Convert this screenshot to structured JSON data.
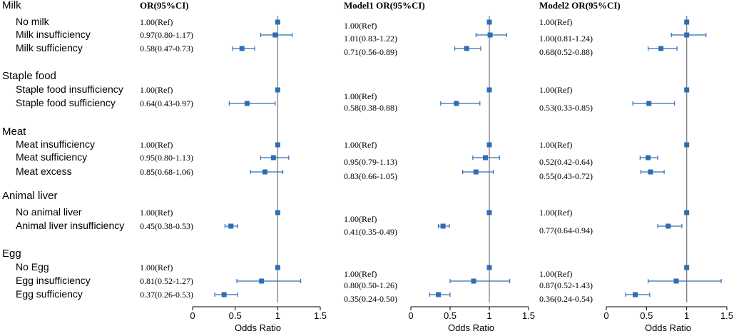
{
  "colors": {
    "marker": "#2f6db3",
    "axis": "#000000",
    "refline": "#7f7f7f",
    "text": "#000000"
  },
  "chart_data": {
    "type": "forest",
    "xlabel": "Odds Ratio",
    "xlim": [
      0,
      1.5
    ],
    "ticks": [
      0,
      0.5,
      1,
      1.5
    ],
    "tick_labels": [
      "0",
      "0.5",
      "1",
      "1.5"
    ],
    "reference_value": 1,
    "groups": [
      {
        "name": "Milk",
        "rows": [
          "No milk",
          "Milk insufficiency",
          "Milk sufficiency"
        ]
      },
      {
        "name": "Staple food",
        "rows": [
          "Staple food insufficiency",
          "Staple food sufficiency"
        ]
      },
      {
        "name": "Meat",
        "rows": [
          "Meat insufficiency",
          "Meat sufficiency",
          "Meat excess"
        ]
      },
      {
        "name": "Animal liver",
        "rows": [
          "No animal liver",
          "Animal liver insufficiency"
        ]
      },
      {
        "name": "Egg",
        "rows": [
          "No Egg",
          "Egg insufficiency",
          "Egg sufficiency"
        ]
      }
    ],
    "panels": [
      {
        "title": "OR(95%CI)",
        "estimates": [
          {
            "label": "1.00(Ref)",
            "or": 1.0,
            "lo": 1.0,
            "hi": 1.0
          },
          {
            "label": "0.97(0.80-1.17)",
            "or": 0.97,
            "lo": 0.8,
            "hi": 1.17
          },
          {
            "label": "0.58(0.47-0.73)",
            "or": 0.58,
            "lo": 0.47,
            "hi": 0.73
          },
          {
            "label": "1.00(Ref)",
            "or": 1.0,
            "lo": 1.0,
            "hi": 1.0
          },
          {
            "label": "0.64(0.43-0.97)",
            "or": 0.64,
            "lo": 0.43,
            "hi": 0.97
          },
          {
            "label": "1.00(Ref)",
            "or": 1.0,
            "lo": 1.0,
            "hi": 1.0
          },
          {
            "label": "0.95(0.80-1.13)",
            "or": 0.95,
            "lo": 0.8,
            "hi": 1.13
          },
          {
            "label": "0.85(0.68-1.06)",
            "or": 0.85,
            "lo": 0.68,
            "hi": 1.06
          },
          {
            "label": "1.00(Ref)",
            "or": 1.0,
            "lo": 1.0,
            "hi": 1.0
          },
          {
            "label": "0.45(0.38-0.53)",
            "or": 0.45,
            "lo": 0.38,
            "hi": 0.53
          },
          {
            "label": "1.00(Ref)",
            "or": 1.0,
            "lo": 1.0,
            "hi": 1.0
          },
          {
            "label": "0.81(0.52-1.27)",
            "or": 0.81,
            "lo": 0.52,
            "hi": 1.27
          },
          {
            "label": "0.37(0.26-0.53)",
            "or": 0.37,
            "lo": 0.26,
            "hi": 0.53
          }
        ]
      },
      {
        "title": "Model1 OR(95%CI)",
        "estimates": [
          {
            "label": "1.00(Ref)",
            "or": 1.0,
            "lo": 1.0,
            "hi": 1.0
          },
          {
            "label": "1.01(0.83-1.22)",
            "or": 1.01,
            "lo": 0.83,
            "hi": 1.22
          },
          {
            "label": "0.71(0.56-0.89)",
            "or": 0.71,
            "lo": 0.56,
            "hi": 0.89
          },
          {
            "label": "1.00(Ref)",
            "or": 1.0,
            "lo": 1.0,
            "hi": 1.0
          },
          {
            "label": "0.58(0.38-0.88)",
            "or": 0.58,
            "lo": 0.38,
            "hi": 0.88
          },
          {
            "label": "1.00(Ref)",
            "or": 1.0,
            "lo": 1.0,
            "hi": 1.0
          },
          {
            "label": "0.95(0.79-1.13)",
            "or": 0.95,
            "lo": 0.79,
            "hi": 1.13
          },
          {
            "label": "0.83(0.66-1.05)",
            "or": 0.83,
            "lo": 0.66,
            "hi": 1.05
          },
          {
            "label": "1.00(Ref)",
            "or": 1.0,
            "lo": 1.0,
            "hi": 1.0
          },
          {
            "label": "0.41(0.35-0.49)",
            "or": 0.41,
            "lo": 0.35,
            "hi": 0.49
          },
          {
            "label": "1.00(Ref)",
            "or": 1.0,
            "lo": 1.0,
            "hi": 1.0
          },
          {
            "label": "0.80(0.50-1.26)",
            "or": 0.8,
            "lo": 0.5,
            "hi": 1.26
          },
          {
            "label": "0.35(0.24-0.50)",
            "or": 0.35,
            "lo": 0.24,
            "hi": 0.5
          }
        ]
      },
      {
        "title": "Model2 OR(95%CI)",
        "estimates": [
          {
            "label": "1.00(Ref)",
            "or": 1.0,
            "lo": 1.0,
            "hi": 1.0
          },
          {
            "label": "1.00(0.81-1.24)",
            "or": 1.0,
            "lo": 0.81,
            "hi": 1.24
          },
          {
            "label": "0.68(0.52-0.88)",
            "or": 0.68,
            "lo": 0.52,
            "hi": 0.88
          },
          {
            "label": "1.00(Ref)",
            "or": 1.0,
            "lo": 1.0,
            "hi": 1.0
          },
          {
            "label": "0.53(0.33-0.85)",
            "or": 0.53,
            "lo": 0.33,
            "hi": 0.85
          },
          {
            "label": "1.00(Ref)",
            "or": 1.0,
            "lo": 1.0,
            "hi": 1.0
          },
          {
            "label": "0.52(0.42-0.64)",
            "or": 0.52,
            "lo": 0.42,
            "hi": 0.64
          },
          {
            "label": "0.55(0.43-0.72)",
            "or": 0.55,
            "lo": 0.43,
            "hi": 0.72
          },
          {
            "label": "1.00(Ref)",
            "or": 1.0,
            "lo": 1.0,
            "hi": 1.0
          },
          {
            "label": "0.77(0.64-0.94)",
            "or": 0.77,
            "lo": 0.64,
            "hi": 0.94
          },
          {
            "label": "1.00(Ref)",
            "or": 1.0,
            "lo": 1.0,
            "hi": 1.0
          },
          {
            "label": "0.87(0.52-1.43)",
            "or": 0.87,
            "lo": 0.52,
            "hi": 1.43
          },
          {
            "label": "0.36(0.24-0.54)",
            "or": 0.36,
            "lo": 0.24,
            "hi": 0.54
          }
        ]
      }
    ]
  }
}
